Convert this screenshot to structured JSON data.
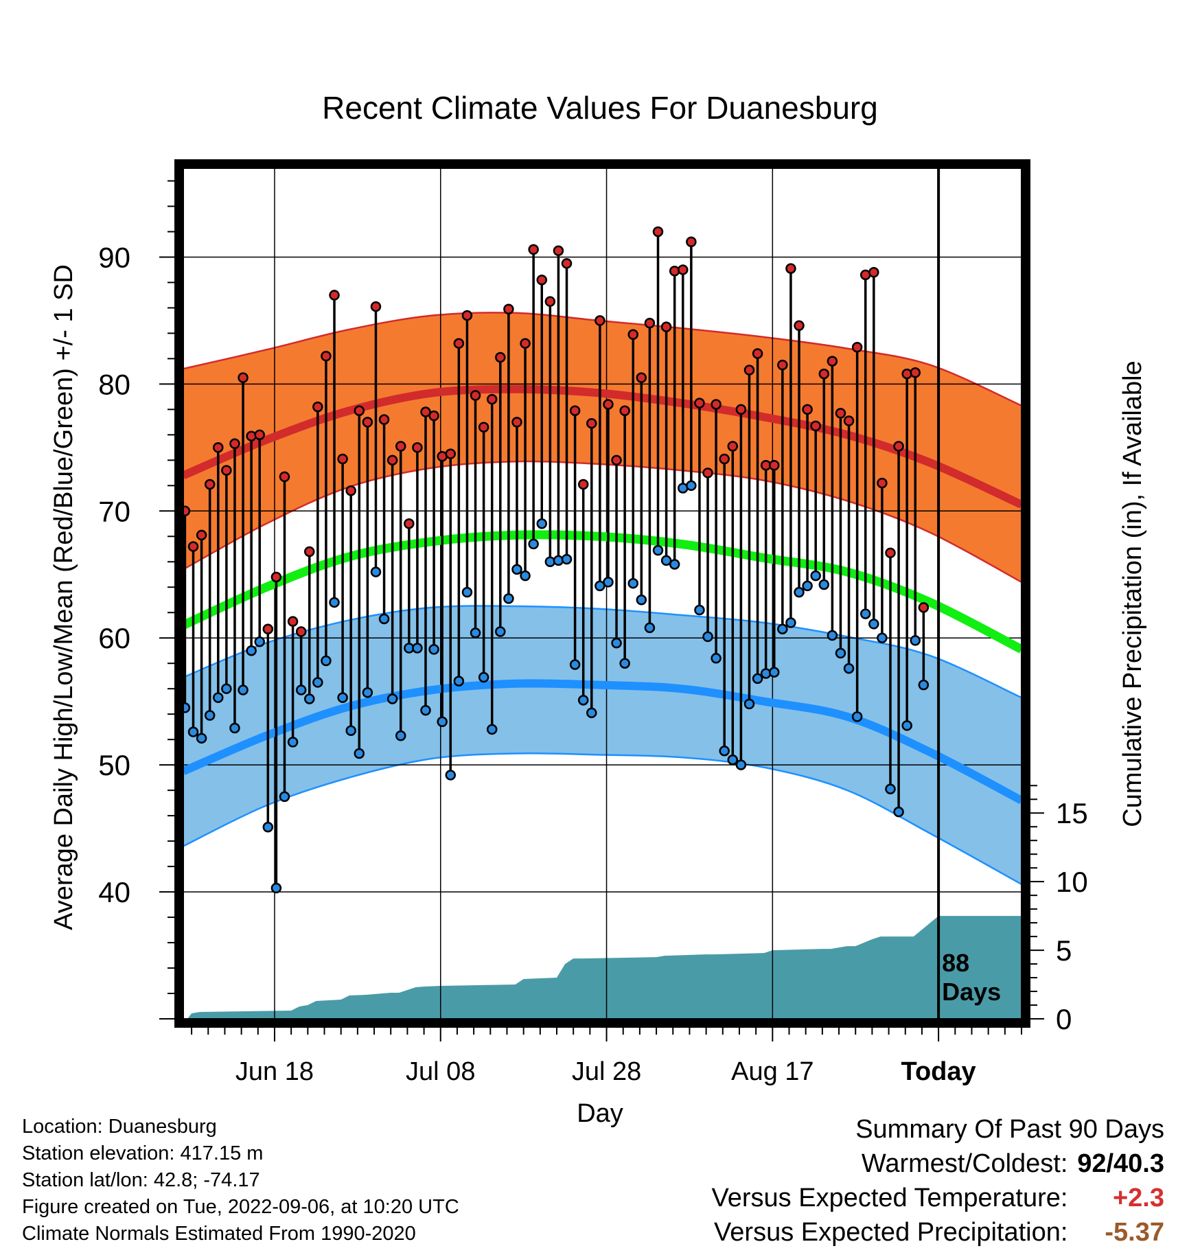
{
  "chart_data": {
    "type": "line",
    "title": "Recent Climate Values For Duanesburg",
    "xlabel": "Day",
    "ylabel": "Average Daily High/Low/Mean (Red/Blue/Green) +/- 1 SD",
    "y2label": "Cumulative Precipitation (in), If Available",
    "x_tick_labels": [
      "Jun 18",
      "Jul 08",
      "Jul 28",
      "Aug 17",
      "Today"
    ],
    "x_tick_days": [
      11,
      31,
      51,
      71,
      91
    ],
    "xlim_days": [
      0,
      101
    ],
    "y_ticks": [
      40,
      50,
      60,
      70,
      80,
      90
    ],
    "ylim": [
      30,
      97
    ],
    "y2_ticks": [
      0,
      5,
      10,
      15
    ],
    "y2lim": [
      0,
      62
    ],
    "today_marker_label": [
      "88",
      "Days"
    ],
    "grid": true,
    "normals": {
      "high_mean": {
        "x": [
          0,
          10,
          20,
          30,
          40,
          50,
          60,
          70,
          80,
          90,
          101
        ],
        "y": [
          72.8,
          75.6,
          77.9,
          79.3,
          79.6,
          79.3,
          78.5,
          77.4,
          76.0,
          73.8,
          70.5
        ]
      },
      "high_upper": {
        "x": [
          0,
          10,
          20,
          30,
          40,
          50,
          60,
          70,
          80,
          90,
          101
        ],
        "y": [
          81.2,
          82.7,
          84.3,
          85.4,
          85.6,
          85.0,
          84.4,
          83.7,
          82.8,
          81.5,
          78.3
        ]
      },
      "high_lower": {
        "x": [
          0,
          10,
          20,
          30,
          40,
          50,
          60,
          70,
          80,
          90,
          101
        ],
        "y": [
          65.4,
          69.0,
          71.9,
          73.4,
          73.9,
          73.7,
          73.2,
          72.4,
          70.8,
          68.3,
          64.4
        ]
      },
      "mean": {
        "x": [
          0,
          10,
          20,
          30,
          40,
          50,
          60,
          70,
          80,
          90,
          101
        ],
        "y": [
          61.0,
          64.0,
          66.4,
          67.6,
          68.1,
          68.0,
          67.4,
          66.3,
          65.2,
          62.8,
          59.1
        ]
      },
      "low_mean": {
        "x": [
          0,
          10,
          20,
          30,
          40,
          50,
          60,
          70,
          80,
          90,
          101
        ],
        "y": [
          49.5,
          52.3,
          54.6,
          55.9,
          56.4,
          56.3,
          56.0,
          55.0,
          53.8,
          51.0,
          47.2
        ]
      },
      "low_upper": {
        "x": [
          0,
          10,
          20,
          30,
          40,
          50,
          60,
          70,
          80,
          90,
          101
        ],
        "y": [
          56.9,
          59.6,
          61.4,
          62.4,
          62.5,
          62.3,
          61.8,
          61.2,
          60.1,
          58.6,
          55.3
        ]
      },
      "low_lower": {
        "x": [
          0,
          10,
          20,
          30,
          40,
          50,
          60,
          70,
          80,
          90,
          101
        ],
        "y": [
          43.6,
          46.8,
          49.0,
          50.5,
          50.9,
          50.8,
          50.6,
          49.8,
          48.0,
          44.6,
          40.6
        ]
      }
    },
    "observed": {
      "high": [
        70.0,
        67.2,
        68.1,
        72.1,
        75.0,
        73.2,
        75.3,
        80.5,
        75.9,
        76.0,
        60.7,
        64.8,
        72.7,
        61.3,
        60.5,
        66.8,
        78.2,
        82.2,
        87.0,
        74.1,
        71.6,
        77.9,
        77.0,
        86.1,
        77.2,
        74.0,
        75.1,
        69.0,
        75.0,
        77.8,
        77.5,
        74.3,
        74.5,
        83.2,
        85.4,
        79.1,
        76.6,
        78.8,
        82.1,
        85.9,
        77.0,
        83.2,
        90.6,
        88.2,
        86.5,
        90.5,
        89.5,
        77.9,
        72.1,
        76.9,
        85.0,
        78.4,
        74.0,
        77.9,
        83.9,
        80.5,
        84.8,
        92.0,
        84.5,
        88.9,
        89.0,
        91.2,
        78.5,
        73.0,
        78.4,
        74.1,
        75.1,
        78.0,
        81.1,
        82.4,
        73.6,
        73.6,
        81.5,
        89.1,
        84.6,
        78.0,
        76.7,
        80.8,
        81.8,
        77.7,
        77.1,
        82.9,
        88.6,
        88.8,
        72.2,
        66.7,
        75.1,
        80.8,
        80.9,
        62.4
      ],
      "low": [
        54.5,
        52.6,
        52.1,
        53.9,
        55.3,
        56.0,
        52.9,
        55.9,
        59.0,
        59.7,
        45.1,
        40.3,
        47.5,
        51.8,
        55.9,
        55.2,
        56.5,
        58.2,
        62.8,
        55.3,
        52.7,
        50.9,
        55.7,
        65.2,
        61.5,
        55.2,
        52.3,
        59.2,
        59.2,
        54.3,
        59.1,
        53.4,
        49.2,
        56.6,
        63.6,
        60.4,
        56.9,
        52.8,
        60.5,
        63.1,
        65.4,
        64.9,
        67.4,
        69.0,
        66.0,
        66.1,
        66.2,
        57.9,
        55.1,
        54.1,
        64.1,
        64.4,
        59.6,
        58.0,
        64.3,
        63.0,
        60.8,
        66.9,
        66.1,
        65.8,
        71.8,
        72.0,
        62.2,
        60.1,
        58.4,
        51.1,
        50.4,
        50.0,
        54.8,
        56.8,
        57.2,
        57.3,
        60.7,
        61.2,
        63.6,
        64.1,
        64.9,
        64.2,
        60.2,
        58.8,
        57.6,
        53.8,
        61.9,
        61.1,
        60.0,
        48.1,
        46.3,
        53.1,
        59.8,
        56.3
      ]
    },
    "precip_cumulative": {
      "x": [
        0.5,
        1,
        2,
        13,
        14,
        15,
        16,
        19,
        20,
        22,
        25,
        26,
        28,
        29,
        31,
        40,
        41,
        45,
        46,
        47,
        48,
        57,
        58,
        63,
        64,
        70,
        71,
        77,
        78,
        80,
        81,
        83,
        84,
        87,
        88,
        90,
        91,
        101
      ],
      "y": [
        0,
        0.4,
        0.5,
        0.6,
        0.9,
        1.0,
        1.3,
        1.4,
        1.7,
        1.75,
        1.9,
        1.9,
        2.3,
        2.35,
        2.4,
        2.5,
        2.9,
        3.0,
        4.0,
        4.4,
        4.4,
        4.5,
        4.6,
        4.7,
        4.7,
        4.8,
        5.0,
        5.1,
        5.1,
        5.3,
        5.3,
        5.8,
        6.0,
        6.0,
        6.0,
        7.0,
        7.5,
        7.5
      ]
    }
  },
  "footer": {
    "location": "Location: Duanesburg",
    "elevation": "Station elevation: 417.15 m",
    "latlon": "Station lat/lon: 42.8; -74.17",
    "created": "Figure created on Tue, 2022-09-06, at 10:20 UTC",
    "normals_note": "Climate Normals Estimated From 1990-2020"
  },
  "summary": {
    "heading": "Summary Of Past 90 Days",
    "warmest_coldest_label": "Warmest/Coldest:",
    "warmest_coldest_value": "92/40.3",
    "temp_label": "Versus Expected Temperature:",
    "temp_value": "+2.3",
    "precip_label": "Versus Expected Precipitation:",
    "precip_value": "-5.37",
    "colors": {
      "temp_value": "#d63030",
      "precip_value": "#9a5a2a"
    }
  },
  "colors": {
    "high_band": "#f47a30",
    "high_line": "#d22b2b",
    "mean_line": "#11ee11",
    "low_band": "#84c0e8",
    "low_line": "#1e90ff",
    "band_edge_high": "#d22b2b",
    "band_edge_low": "#1e90ff",
    "precip": "#4a9ba8",
    "high_point": "#d42a2a",
    "low_point": "#2a8ae0"
  }
}
